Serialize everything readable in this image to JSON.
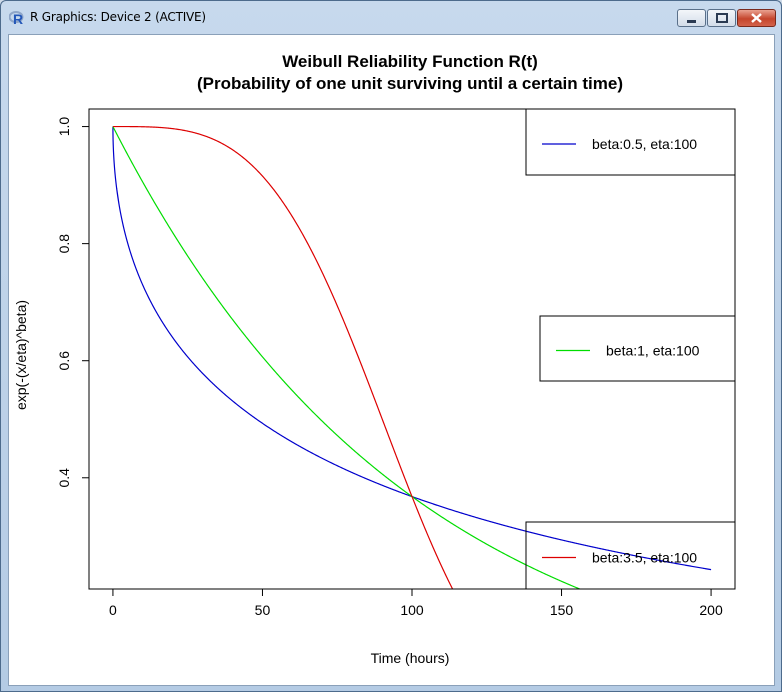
{
  "window": {
    "title": "R Graphics: Device 2 (ACTIVE)",
    "app_icon": "r-logo-icon",
    "controls": [
      "minimize-icon",
      "maximize-icon",
      "close-icon"
    ]
  },
  "chart_data": {
    "type": "line",
    "title_line1": "Weibull Reliability Function R(t)",
    "title_line2": "(Probability of one unit surviving until a certain time)",
    "xlabel": "Time (hours)",
    "ylabel": "exp(-(x/eta)^beta)",
    "xlim": [
      -8,
      208
    ],
    "ylim": [
      0.21,
      1.03
    ],
    "x_ticks": [
      0,
      50,
      100,
      150,
      200
    ],
    "y_ticks": [
      0.4,
      0.6,
      0.8,
      1.0
    ],
    "x_tick_labels": [
      "0",
      "50",
      "100",
      "150",
      "200"
    ],
    "y_tick_labels": [
      "0.4",
      "0.6",
      "0.8",
      "1.0"
    ],
    "x_domain": [
      0,
      200
    ],
    "series": [
      {
        "name": "beta:0.5, eta:100",
        "beta": 0.5,
        "eta": 100,
        "color": "#0000cc"
      },
      {
        "name": "beta:1, eta:100",
        "beta": 1,
        "eta": 100,
        "color": "#00dd00"
      },
      {
        "name": "beta:3.5, eta:100",
        "beta": 3.5,
        "eta": 100,
        "color": "#dd0000"
      }
    ],
    "legends": [
      "top-right",
      "right",
      "bottom-right"
    ],
    "grid": false
  }
}
